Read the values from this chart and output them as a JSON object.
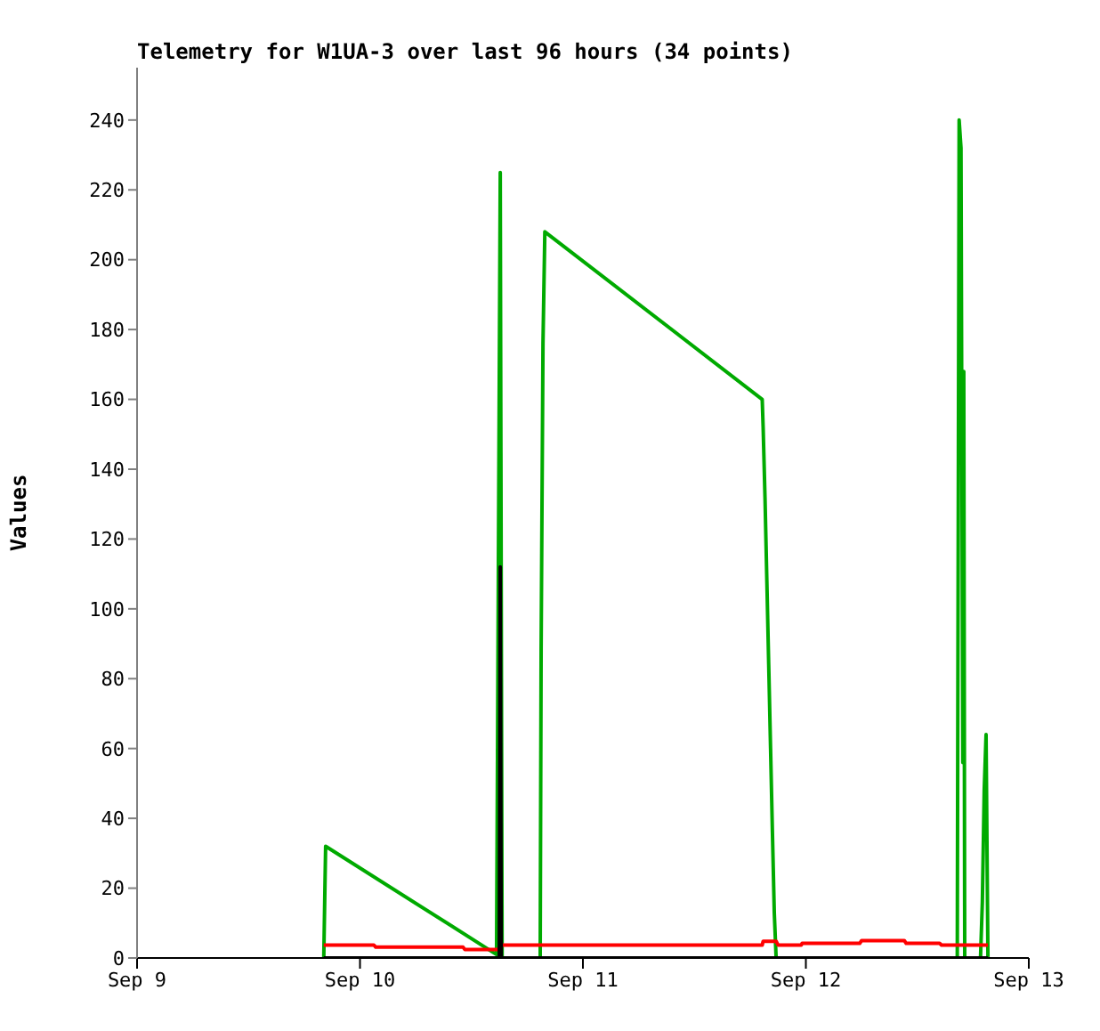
{
  "chart_data": {
    "type": "line",
    "title": "Telemetry for W1UA-3 over last 96 hours (34 points)",
    "ylabel": "Values",
    "xlim": [
      "--09-09",
      "--09-13"
    ],
    "xticks": [
      {
        "value": "--09-09",
        "label": "Sep 9"
      },
      {
        "value": "--09-10",
        "label": "Sep 10"
      },
      {
        "value": "--09-11",
        "label": "Sep 11"
      },
      {
        "value": "--09-12",
        "label": "Sep 12"
      },
      {
        "value": "--09-13",
        "label": "Sep 13"
      }
    ],
    "ylim": [
      0,
      255
    ],
    "yticks": [
      0,
      20,
      40,
      60,
      80,
      100,
      120,
      140,
      160,
      180,
      200,
      220,
      240
    ],
    "grid": false,
    "marker": "none",
    "line_style": "solid",
    "series": [
      {
        "color": "#00aa00",
        "x": [
          "--09-09T20:06",
          "--09-09T20:12",
          "--09-09T20:18",
          "--09-10T14:42",
          "--09-10T15:06",
          "--09-10T15:18",
          "--09-10T19:24",
          "--09-10T19:30",
          "--09-10T19:42",
          "--09-10T19:54",
          "--09-11T19:18",
          "--09-11T19:24",
          "--09-11T19:36",
          "--09-11T19:48",
          "--09-11T20:00",
          "--09-11T20:12",
          "--09-11T20:24",
          "--09-11T20:36",
          "--09-11T20:48",
          "--09-12T16:18",
          "--09-12T16:30",
          "--09-12T16:42",
          "--09-12T16:54",
          "--09-12T17:00",
          "--09-12T17:06",
          "--09-12T18:48",
          "--09-12T19:00",
          "--09-12T19:12",
          "--09-12T19:24",
          "--09-12T19:36"
        ],
        "values": [
          0,
          16,
          32,
          1,
          225,
          0,
          0,
          88,
          176,
          208,
          160,
          152,
          132,
          108,
          84,
          60,
          36,
          13,
          0,
          0,
          240,
          232,
          56,
          168,
          0,
          0,
          16,
          48,
          64,
          0
        ]
      },
      {
        "color": "#ff0000",
        "x": [
          "--09-09T20:06",
          "--09-10T01:30",
          "--09-10T01:42",
          "--09-10T11:06",
          "--09-10T11:18",
          "--09-10T14:54",
          "--09-10T15:06",
          "--09-11T19:18",
          "--09-11T19:24",
          "--09-11T20:48",
          "--09-11T21:00",
          "--09-11T23:30",
          "--09-11T23:36",
          "--09-12T05:48",
          "--09-12T06:00",
          "--09-12T10:36",
          "--09-12T10:48",
          "--09-12T14:24",
          "--09-12T14:36",
          "--09-12T19:36"
        ],
        "values": [
          3.7,
          3.7,
          3.1,
          3.1,
          2.4,
          2.4,
          3.7,
          3.7,
          4.8,
          4.8,
          3.7,
          3.7,
          4.2,
          4.2,
          5,
          5,
          4.2,
          4.2,
          3.7,
          3.7
        ]
      },
      {
        "color": "#000000",
        "x": [
          "--09-09T20:06",
          "--09-10T15:00",
          "--09-10T15:06",
          "--09-10T15:12",
          "--09-12T19:36"
        ],
        "values": [
          0,
          0,
          112,
          0,
          0
        ]
      }
    ]
  }
}
